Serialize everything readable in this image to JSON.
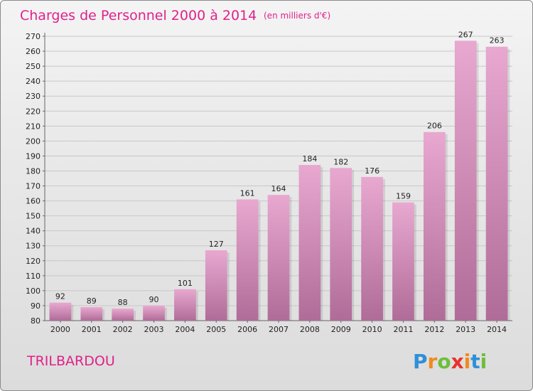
{
  "chart_data": {
    "type": "bar",
    "title": "Charges de Personnel 2000 à 2014",
    "subtitle": "(en milliers d'€)",
    "categories": [
      "2000",
      "2001",
      "2002",
      "2003",
      "2004",
      "2005",
      "2006",
      "2007",
      "2008",
      "2009",
      "2010",
      "2011",
      "2012",
      "2013",
      "2014"
    ],
    "values": [
      92,
      89,
      88,
      90,
      101,
      127,
      161,
      164,
      184,
      182,
      176,
      159,
      206,
      267,
      263
    ],
    "ylim": [
      80,
      270
    ],
    "yticks": [
      80,
      90,
      100,
      110,
      120,
      130,
      140,
      150,
      160,
      170,
      180,
      190,
      200,
      210,
      220,
      230,
      240,
      250,
      260,
      270
    ],
    "xlabel": "",
    "ylabel": "",
    "grid": true,
    "bar_color_top": "#e8a8d0",
    "bar_color_bottom": "#b06c98",
    "show_data_labels": true
  },
  "footer": {
    "commune": "TRILBARDOU",
    "logo_letters": [
      {
        "ch": "P",
        "color": "#2f8fd8"
      },
      {
        "ch": "r",
        "color": "#f08a1c"
      },
      {
        "ch": "o",
        "color": "#6cbf3a"
      },
      {
        "ch": "x",
        "color": "#e8322c"
      },
      {
        "ch": "i",
        "color": "#f08a1c"
      },
      {
        "ch": "t",
        "color": "#2f8fd8"
      },
      {
        "ch": "i",
        "color": "#6cbf3a"
      }
    ]
  }
}
